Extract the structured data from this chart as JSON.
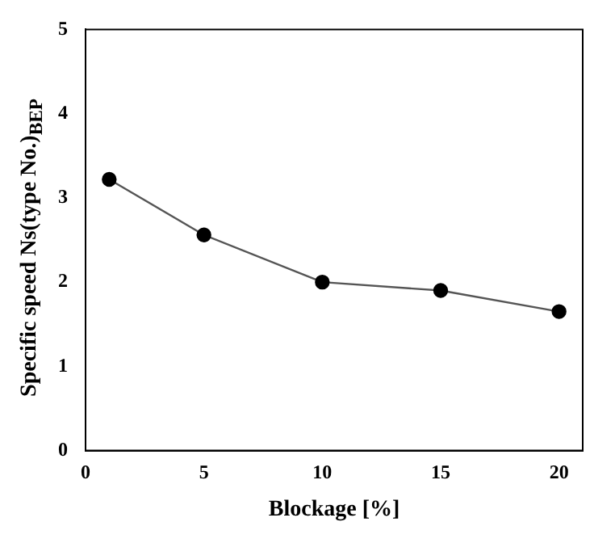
{
  "chart_data": {
    "type": "line",
    "xlabel": "Blockage [%]",
    "ylabel": "Specific speed Ns(type No.)$_{BEP}$",
    "x": [
      1,
      5,
      10,
      15,
      20
    ],
    "series": [
      {
        "color": "#000000",
        "values": [
          3.22,
          2.56,
          2.0,
          1.9,
          1.65
        ]
      }
    ],
    "xlim": [
      0,
      21
    ],
    "xticks": [
      0,
      5,
      10,
      15,
      20
    ],
    "ylim": [
      0,
      5
    ],
    "yticks": [
      0,
      1,
      2,
      3,
      4,
      5
    ],
    "grid": false,
    "legend": false,
    "marker": "circle",
    "line_style": "solid"
  }
}
